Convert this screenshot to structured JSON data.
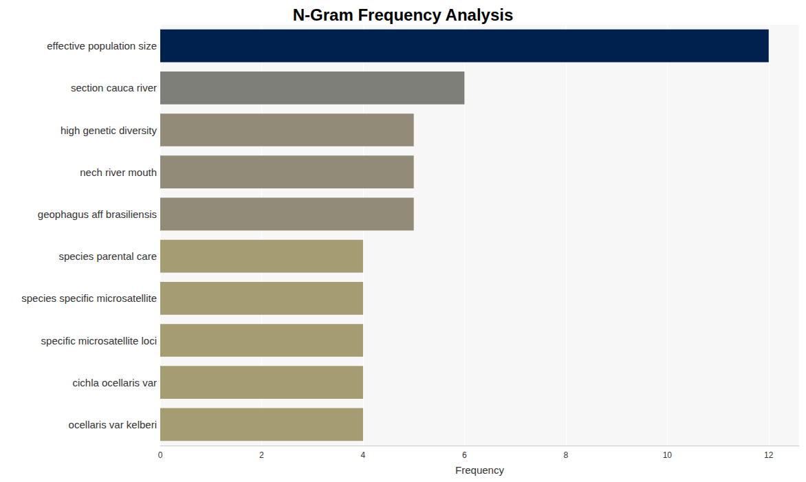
{
  "chart_data": {
    "type": "bar",
    "title": "N-Gram Frequency Analysis",
    "orientation": "horizontal",
    "categories": [
      "effective population size",
      "section cauca river",
      "high genetic diversity",
      "nech river mouth",
      "geophagus aff brasiliensis",
      "species parental care",
      "species specific microsatellite",
      "specific microsatellite loci",
      "cichla ocellaris var",
      "ocellaris var kelberi"
    ],
    "values": [
      12,
      6,
      5,
      5,
      5,
      4,
      4,
      4,
      4,
      4
    ],
    "colors": [
      "#00204e",
      "#7f7f7a",
      "#928b78",
      "#928b78",
      "#928b78",
      "#a59c72",
      "#a59c72",
      "#a59c72",
      "#a59c72",
      "#a59c72"
    ],
    "x_label": "Frequency",
    "xlim": [
      0,
      12.6
    ],
    "xticks": [
      0,
      2,
      4,
      6,
      8,
      10,
      12
    ],
    "grid": true
  }
}
